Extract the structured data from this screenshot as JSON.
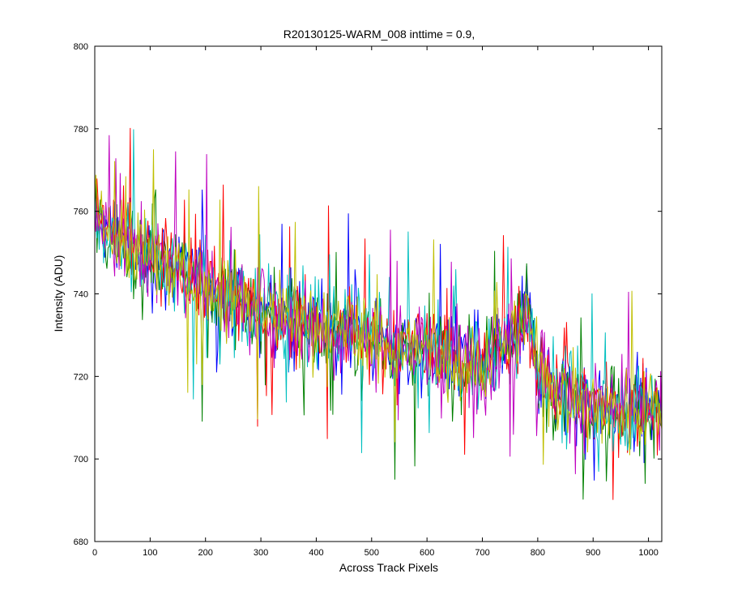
{
  "chart_data": {
    "type": "line",
    "title": "R20130125-WARM_008 inttime = 0.9,",
    "xlabel": "Across Track Pixels",
    "ylabel": "Intensity (ADU)",
    "xlim": [
      0,
      1024
    ],
    "ylim": [
      680,
      800
    ],
    "x_ticks": [
      0,
      100,
      200,
      300,
      400,
      500,
      600,
      700,
      800,
      900,
      1000
    ],
    "y_ticks": [
      680,
      700,
      720,
      740,
      760,
      780,
      800
    ],
    "x_tick_labels": [
      "0",
      "100",
      "200",
      "300",
      "400",
      "500",
      "600",
      "700",
      "800",
      "900",
      "1000"
    ],
    "y_tick_labels": [
      "680",
      "700",
      "720",
      "740",
      "760",
      "780",
      "800"
    ],
    "grid": false,
    "legend": "none",
    "series_colors": [
      "#0000ff",
      "#008000",
      "#ff0000",
      "#00bfbf",
      "#bf00bf",
      "#bfbf00"
    ],
    "trend": {
      "x": [
        0,
        50,
        100,
        150,
        200,
        250,
        300,
        350,
        400,
        450,
        500,
        550,
        600,
        650,
        700,
        750,
        780,
        800,
        850,
        900,
        950,
        1024
      ],
      "y": [
        758,
        753,
        749,
        746,
        742,
        739,
        736,
        734,
        732,
        731,
        729,
        727,
        726,
        725,
        723,
        728,
        737,
        722,
        716,
        713,
        712,
        713
      ]
    },
    "noise_amplitude": 10
  }
}
